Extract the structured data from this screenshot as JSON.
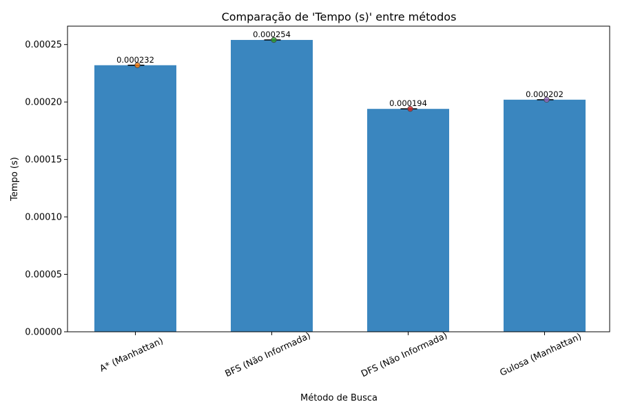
{
  "chart_data": {
    "type": "bar",
    "title": "Comparação de 'Tempo (s)' entre métodos",
    "xlabel": "Método de Busca",
    "ylabel": "Tempo (s)",
    "categories": [
      "A* (Manhattan)",
      "BFS (Não Informada)",
      "DFS (Não Informada)",
      "Gulosa (Manhattan)"
    ],
    "values": [
      0.000232,
      0.000254,
      0.000194,
      0.000202
    ],
    "data_labels": [
      "0.000232",
      "0.000254",
      "0.000194",
      "0.000202"
    ],
    "ylim": [
      0,
      0.000266
    ],
    "yticks": [
      0,
      5e-05,
      0.0001,
      0.00015,
      0.0002,
      0.00025
    ],
    "ytick_labels": [
      "0.00000",
      "0.00005",
      "0.00010",
      "0.00015",
      "0.00020",
      "0.00025"
    ],
    "grid": false,
    "legend": "none",
    "bar_color": "#3a86bf",
    "marker_colors": [
      "#ff7f0e",
      "#2ca02c",
      "#d62728",
      "#9467bd"
    ]
  }
}
